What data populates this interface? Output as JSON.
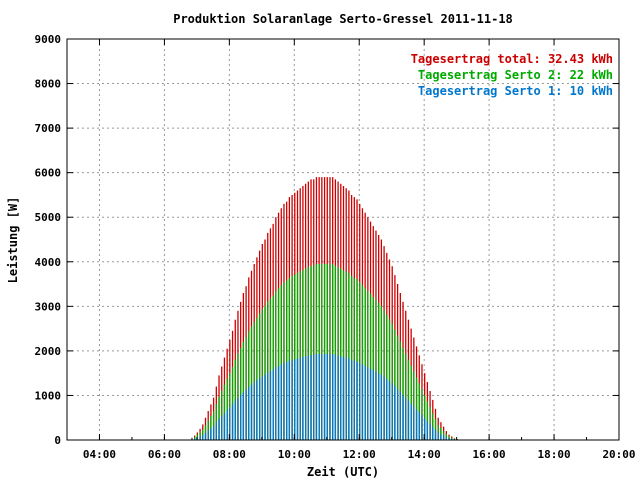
{
  "chart_data": {
    "type": "bar",
    "title": "Produktion Solaranlage Serto-Gressel 2011-11-18",
    "xlabel": "Zeit (UTC)",
    "ylabel": "Leistung [W]",
    "xlim": [
      "03:00",
      "20:00"
    ],
    "ylim": [
      0,
      9000
    ],
    "x_ticks": [
      "04:00",
      "06:00",
      "08:00",
      "10:00",
      "12:00",
      "14:00",
      "16:00",
      "18:00",
      "20:00"
    ],
    "y_ticks": [
      "0",
      "1000",
      "2000",
      "3000",
      "4000",
      "5000",
      "6000",
      "7000",
      "8000",
      "9000"
    ],
    "grid": true,
    "legend_position": "top-right",
    "legend": [
      {
        "label": "Tagesertrag total: 32.43 kWh",
        "color": "#cc0000"
      },
      {
        "label": "Tagesertrag Serto 2: 22 kWh",
        "color": "#00aa00"
      },
      {
        "label": "Tagesertrag Serto 1: 10 kWh",
        "color": "#0077cc"
      }
    ],
    "x": [
      "06:45",
      "06:50",
      "06:55",
      "07:00",
      "07:05",
      "07:10",
      "07:15",
      "07:20",
      "07:25",
      "07:30",
      "07:35",
      "07:40",
      "07:45",
      "07:50",
      "07:55",
      "08:00",
      "08:05",
      "08:10",
      "08:15",
      "08:20",
      "08:25",
      "08:30",
      "08:35",
      "08:40",
      "08:45",
      "08:50",
      "08:55",
      "09:00",
      "09:05",
      "09:10",
      "09:15",
      "09:20",
      "09:25",
      "09:30",
      "09:35",
      "09:40",
      "09:45",
      "09:50",
      "09:55",
      "10:00",
      "10:05",
      "10:10",
      "10:15",
      "10:20",
      "10:25",
      "10:30",
      "10:35",
      "10:40",
      "10:45",
      "10:50",
      "10:55",
      "11:00",
      "11:05",
      "11:10",
      "11:15",
      "11:20",
      "11:25",
      "11:30",
      "11:35",
      "11:40",
      "11:45",
      "11:50",
      "11:55",
      "12:00",
      "12:05",
      "12:10",
      "12:15",
      "12:20",
      "12:25",
      "12:30",
      "12:35",
      "12:40",
      "12:45",
      "12:50",
      "12:55",
      "13:00",
      "13:05",
      "13:10",
      "13:15",
      "13:20",
      "13:25",
      "13:30",
      "13:35",
      "13:40",
      "13:45",
      "13:50",
      "13:55",
      "14:00",
      "14:05",
      "14:10",
      "14:15",
      "14:20",
      "14:25",
      "14:30",
      "14:35",
      "14:40",
      "14:45",
      "14:50",
      "14:55",
      "15:00",
      "15:05",
      "15:10",
      "15:15",
      "15:20",
      "15:25",
      "15:30"
    ],
    "series": [
      {
        "name": "total",
        "color": "#cc0000",
        "values": [
          0,
          50,
          100,
          170,
          250,
          350,
          500,
          650,
          800,
          950,
          1200,
          1450,
          1650,
          1850,
          2050,
          2250,
          2450,
          2700,
          2900,
          3100,
          3300,
          3450,
          3650,
          3800,
          3950,
          4100,
          4250,
          4400,
          4500,
          4650,
          4750,
          4850,
          5000,
          5100,
          5200,
          5300,
          5350,
          5450,
          5500,
          5550,
          5600,
          5650,
          5700,
          5750,
          5800,
          5850,
          5850,
          5900,
          5900,
          5900,
          5900,
          5900,
          5900,
          5900,
          5850,
          5800,
          5750,
          5700,
          5650,
          5600,
          5500,
          5450,
          5400,
          5300,
          5200,
          5100,
          5000,
          4900,
          4800,
          4700,
          4600,
          4500,
          4350,
          4200,
          4050,
          3900,
          3700,
          3500,
          3300,
          3100,
          2900,
          2700,
          2500,
          2300,
          2100,
          1900,
          1700,
          1500,
          1300,
          1100,
          900,
          700,
          500,
          400,
          300,
          200,
          120,
          80,
          40,
          20,
          10,
          0,
          0,
          0,
          0,
          0
        ]
      },
      {
        "name": "Serto 2",
        "color": "#00aa00",
        "values": [
          0,
          30,
          70,
          120,
          170,
          230,
          330,
          430,
          540,
          640,
          800,
          970,
          1100,
          1240,
          1370,
          1500,
          1640,
          1800,
          1940,
          2070,
          2200,
          2310,
          2440,
          2540,
          2640,
          2740,
          2840,
          2940,
          3010,
          3110,
          3180,
          3240,
          3340,
          3410,
          3480,
          3540,
          3580,
          3640,
          3680,
          3710,
          3750,
          3780,
          3810,
          3850,
          3880,
          3910,
          3910,
          3950,
          3950,
          3950,
          3950,
          3950,
          3950,
          3950,
          3910,
          3880,
          3850,
          3810,
          3780,
          3750,
          3680,
          3640,
          3610,
          3540,
          3480,
          3410,
          3340,
          3280,
          3210,
          3140,
          3080,
          3010,
          2910,
          2810,
          2710,
          2610,
          2480,
          2340,
          2210,
          2070,
          1940,
          1800,
          1670,
          1540,
          1400,
          1270,
          1140,
          1000,
          870,
          740,
          600,
          470,
          330,
          270,
          200,
          130,
          80,
          50,
          30,
          15,
          5,
          0,
          0,
          0,
          0,
          0
        ]
      },
      {
        "name": "Serto 1",
        "color": "#0077cc",
        "values": [
          0,
          15,
          30,
          50,
          80,
          110,
          160,
          210,
          260,
          310,
          390,
          470,
          540,
          600,
          670,
          730,
          800,
          880,
          940,
          1010,
          1070,
          1130,
          1190,
          1240,
          1290,
          1340,
          1390,
          1430,
          1470,
          1510,
          1550,
          1580,
          1630,
          1660,
          1700,
          1730,
          1750,
          1780,
          1790,
          1810,
          1830,
          1850,
          1860,
          1880,
          1890,
          1910,
          1910,
          1930,
          1930,
          1930,
          1930,
          1930,
          1930,
          1930,
          1910,
          1890,
          1880,
          1860,
          1850,
          1830,
          1790,
          1780,
          1760,
          1730,
          1700,
          1660,
          1630,
          1600,
          1570,
          1530,
          1500,
          1470,
          1420,
          1370,
          1320,
          1270,
          1210,
          1140,
          1080,
          1010,
          940,
          880,
          810,
          750,
          680,
          620,
          550,
          490,
          420,
          360,
          290,
          230,
          160,
          130,
          100,
          60,
          40,
          25,
          15,
          8,
          3,
          0,
          0,
          0,
          0,
          0
        ]
      }
    ]
  }
}
